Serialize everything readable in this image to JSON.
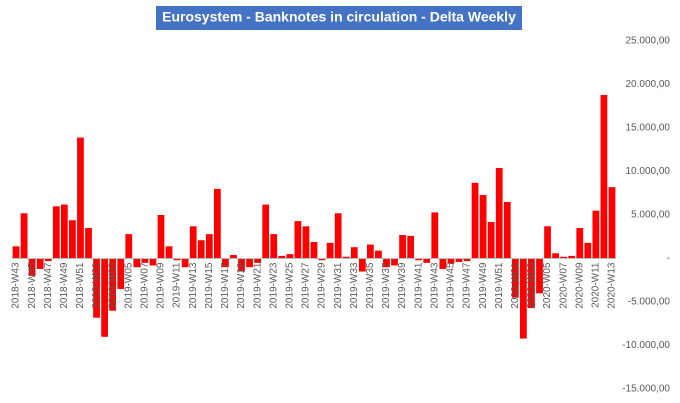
{
  "chart_data": {
    "type": "bar",
    "title": "Eurosystem - Banknotes in circulation - Delta Weekly",
    "categories": [
      "2018-W43",
      null,
      "2018-W45",
      null,
      "2018-W47",
      null,
      "2018-W49",
      null,
      "2018-W51",
      null,
      "2019-W01",
      null,
      "2019-W03",
      null,
      "2019-W05",
      null,
      "2019-W07",
      null,
      "2019-W09",
      null,
      "2019-W11",
      null,
      "2019-W13",
      null,
      "2019-W15",
      null,
      "2019-W17",
      null,
      "2019-W19",
      null,
      "2019-W21",
      null,
      "2019-W23",
      null,
      "2019-W25",
      null,
      "2019-W27",
      null,
      "2019-W29",
      null,
      "2019-W31",
      null,
      "2019-W33",
      null,
      "2019-W35",
      null,
      "2019-W37",
      null,
      "2019-W39",
      null,
      "2019-W41",
      null,
      "2019-W43",
      null,
      "2019-W45",
      null,
      "2019-W47",
      null,
      "2019-W49",
      null,
      "2019-W51",
      null,
      "2020-W01",
      null,
      "2020-W03",
      null,
      "2020-W05",
      null,
      "2020-W07",
      null,
      "2020-W09",
      null,
      "2020-W11",
      null,
      "2020-W13"
    ],
    "values": [
      1400,
      5200,
      -2000,
      -1200,
      -300,
      6000,
      6200,
      4400,
      13900,
      3500,
      -6800,
      -9000,
      -6000,
      -3500,
      2800,
      -1000,
      -500,
      -800,
      5000,
      1400,
      -200,
      -1000,
      3700,
      2100,
      2800,
      8000,
      -1000,
      400,
      -1500,
      -1000,
      -500,
      6200,
      2800,
      300,
      500,
      4300,
      3700,
      1900,
      -200,
      1800,
      5200,
      200,
      1300,
      -1500,
      1600,
      900,
      -1000,
      -800,
      2700,
      2600,
      -200,
      -500,
      5300,
      -1200,
      -600,
      -400,
      -300,
      8700,
      7300,
      4200,
      10400,
      6500,
      -4500,
      -9200,
      -5700,
      -4000,
      3700,
      600,
      200,
      300,
      3500,
      1800,
      5500,
      18800,
      8200
    ],
    "color": "#ff0000",
    "ylim": [
      -15000,
      25000
    ],
    "yticks": [
      {
        "value": -15000,
        "label": "-15.000,00"
      },
      {
        "value": -10000,
        "label": "-10.000,00"
      },
      {
        "value": -5000,
        "label": "-5.000,00"
      },
      {
        "value": 0,
        "label": "-"
      },
      {
        "value": 5000,
        "label": "5.000,00"
      },
      {
        "value": 10000,
        "label": "10.000,00"
      },
      {
        "value": 15000,
        "label": "15.000,00"
      },
      {
        "value": 20000,
        "label": "20.000,00"
      },
      {
        "value": 25000,
        "label": "25.000,00"
      }
    ],
    "grid": false
  }
}
